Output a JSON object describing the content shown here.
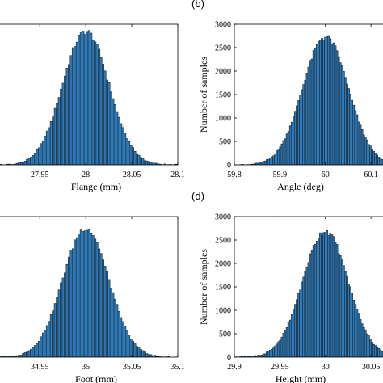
{
  "chart_data": [
    {
      "panel": "(a)",
      "show_panel_label": false,
      "type": "bar",
      "title": "",
      "xlabel": "Flange (mm)",
      "ylabel": "",
      "show_yticks": false,
      "xlim": [
        27.905,
        28.1
      ],
      "ylim": [
        0,
        3000
      ],
      "xticks": [
        27.95,
        28.0,
        28.05,
        28.1
      ],
      "xtick_labels": [
        "27.95",
        "28",
        "28.05",
        "28.1"
      ],
      "yticks": [],
      "ytick_labels": [],
      "bar_color": "#2e7ab8",
      "distribution": {
        "mean": 28.0,
        "std": 0.025,
        "peak": 2850,
        "range": [
          27.905,
          28.1
        ],
        "bins": 90
      },
      "grid": false,
      "legend": "none"
    },
    {
      "panel": "(b)",
      "show_panel_label": true,
      "type": "bar",
      "title": "",
      "xlabel": "Angle (deg)",
      "ylabel": "Number of samples",
      "show_yticks": true,
      "xlim": [
        59.8,
        60.13
      ],
      "ylim": [
        0,
        3000
      ],
      "xticks": [
        59.8,
        59.9,
        60.0,
        60.1
      ],
      "xtick_labels": [
        "59.8",
        "59.9",
        "60",
        "60.1"
      ],
      "yticks": [
        0,
        500,
        1000,
        1500,
        2000,
        2500,
        3000
      ],
      "ytick_labels": [
        "0",
        "500",
        "1000",
        "1500",
        "2000",
        "2500",
        "3000"
      ],
      "bar_color": "#2e7ab8",
      "distribution": {
        "mean": 60.0,
        "std": 0.05,
        "peak": 2730,
        "range": [
          59.8,
          60.13
        ],
        "bins": 90
      },
      "grid": false,
      "legend": "none"
    },
    {
      "panel": "(c)",
      "show_panel_label": false,
      "type": "bar",
      "title": "",
      "xlabel": "Foot (mm)",
      "ylabel": "",
      "show_yticks": false,
      "xlim": [
        34.905,
        35.1
      ],
      "ylim": [
        0,
        3000
      ],
      "xticks": [
        34.95,
        35.0,
        35.05,
        35.1
      ],
      "xtick_labels": [
        "34.95",
        "35",
        "35.05",
        "35.1"
      ],
      "yticks": [],
      "ytick_labels": [],
      "bar_color": "#2e7ab8",
      "distribution": {
        "mean": 35.0,
        "std": 0.025,
        "peak": 2750,
        "range": [
          34.905,
          35.1
        ],
        "bins": 90
      },
      "grid": false,
      "legend": "none"
    },
    {
      "panel": "(d)",
      "show_panel_label": true,
      "type": "bar",
      "title": "",
      "xlabel": "Height (mm)",
      "ylabel": "Number of samples",
      "show_yticks": true,
      "xlim": [
        29.9,
        30.065
      ],
      "ylim": [
        0,
        3000
      ],
      "xticks": [
        29.9,
        29.95,
        30.0,
        30.05
      ],
      "xtick_labels": [
        "29.9",
        "29.95",
        "30",
        "30.05"
      ],
      "yticks": [
        0,
        500,
        1000,
        1500,
        2000,
        2500,
        3000
      ],
      "ytick_labels": [
        "0",
        "500",
        "1000",
        "1500",
        "2000",
        "2500",
        "3000"
      ],
      "bar_color": "#2e7ab8",
      "distribution": {
        "mean": 30.0,
        "std": 0.025,
        "peak": 2690,
        "range": [
          29.9,
          30.065
        ],
        "bins": 90
      },
      "grid": false,
      "legend": "none"
    }
  ]
}
